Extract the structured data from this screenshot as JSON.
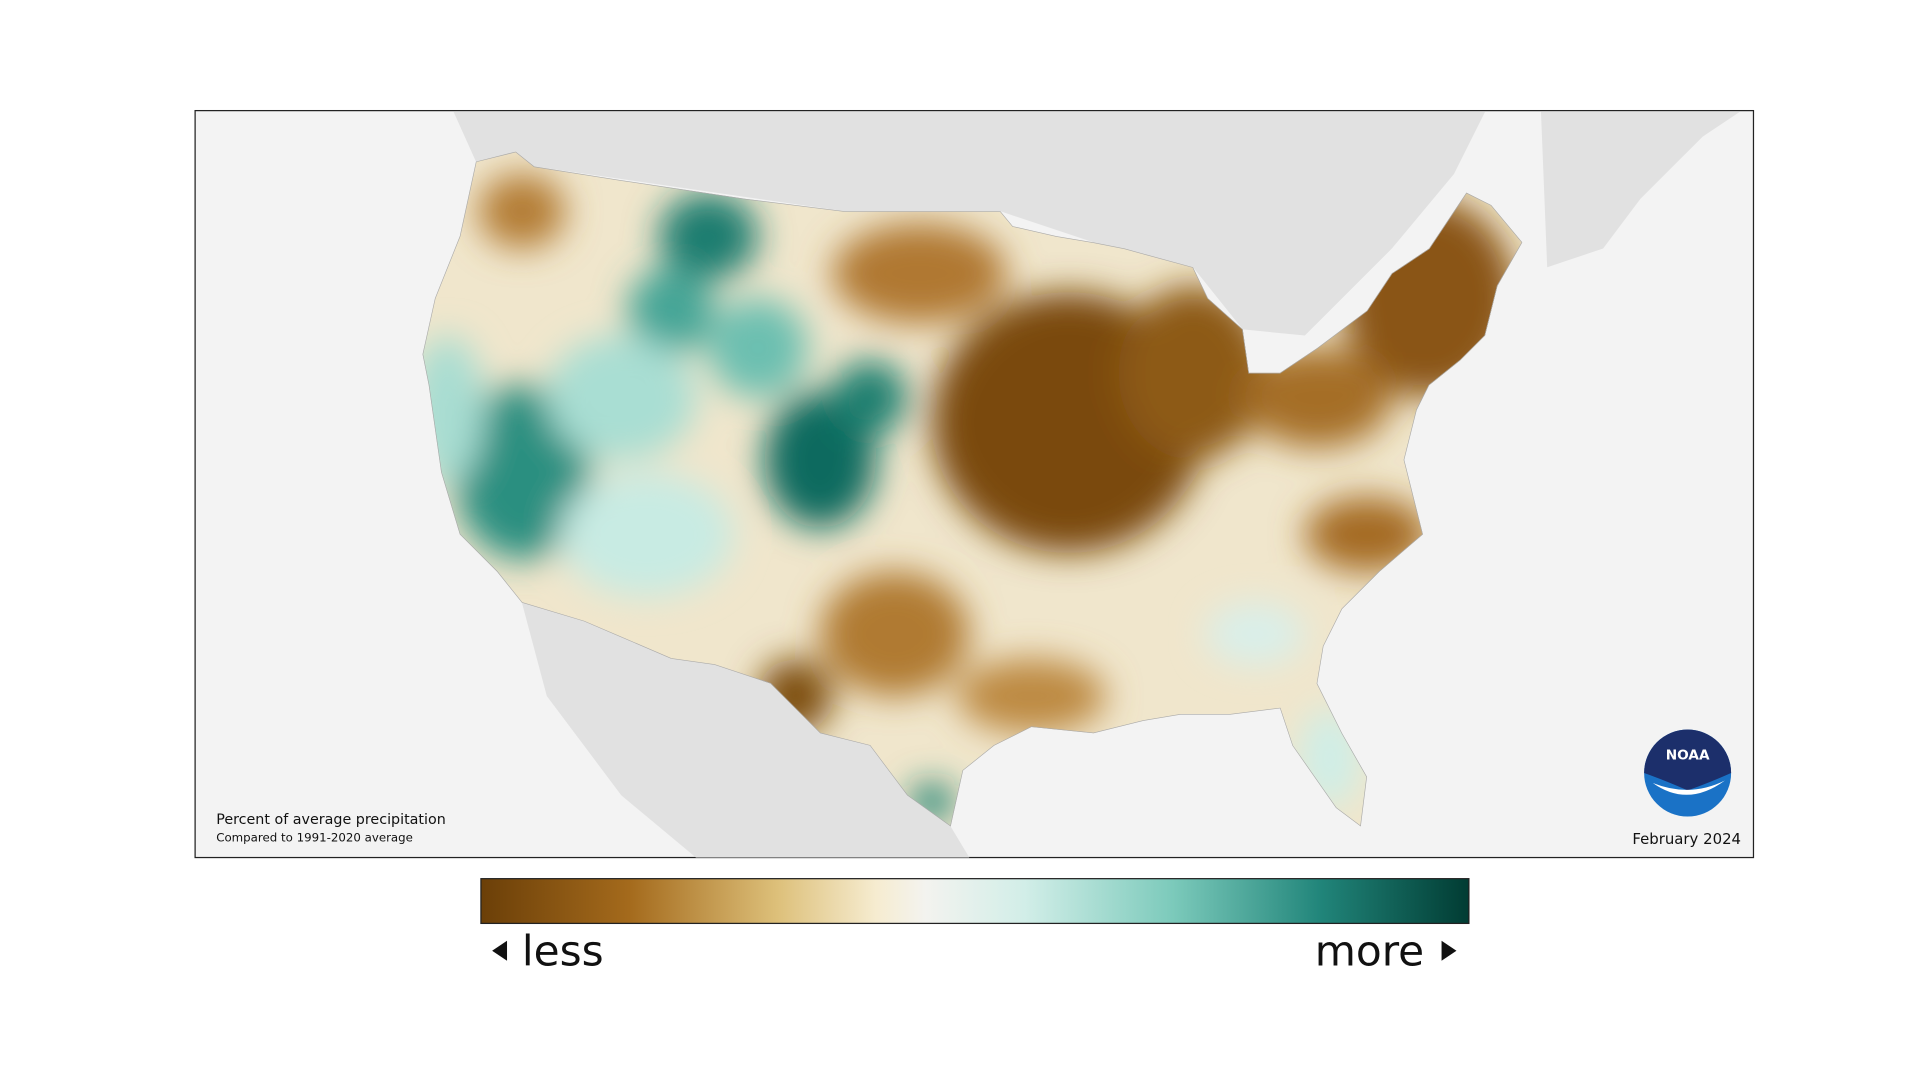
{
  "map": {
    "caption": {
      "title": "Percent of average precipitation",
      "subtitle": "Compared to 1991-2020 average"
    },
    "date": "February 2024",
    "logo": {
      "text": "NOAA"
    },
    "legend": {
      "low_label": "less",
      "high_label": "more"
    }
  }
}
